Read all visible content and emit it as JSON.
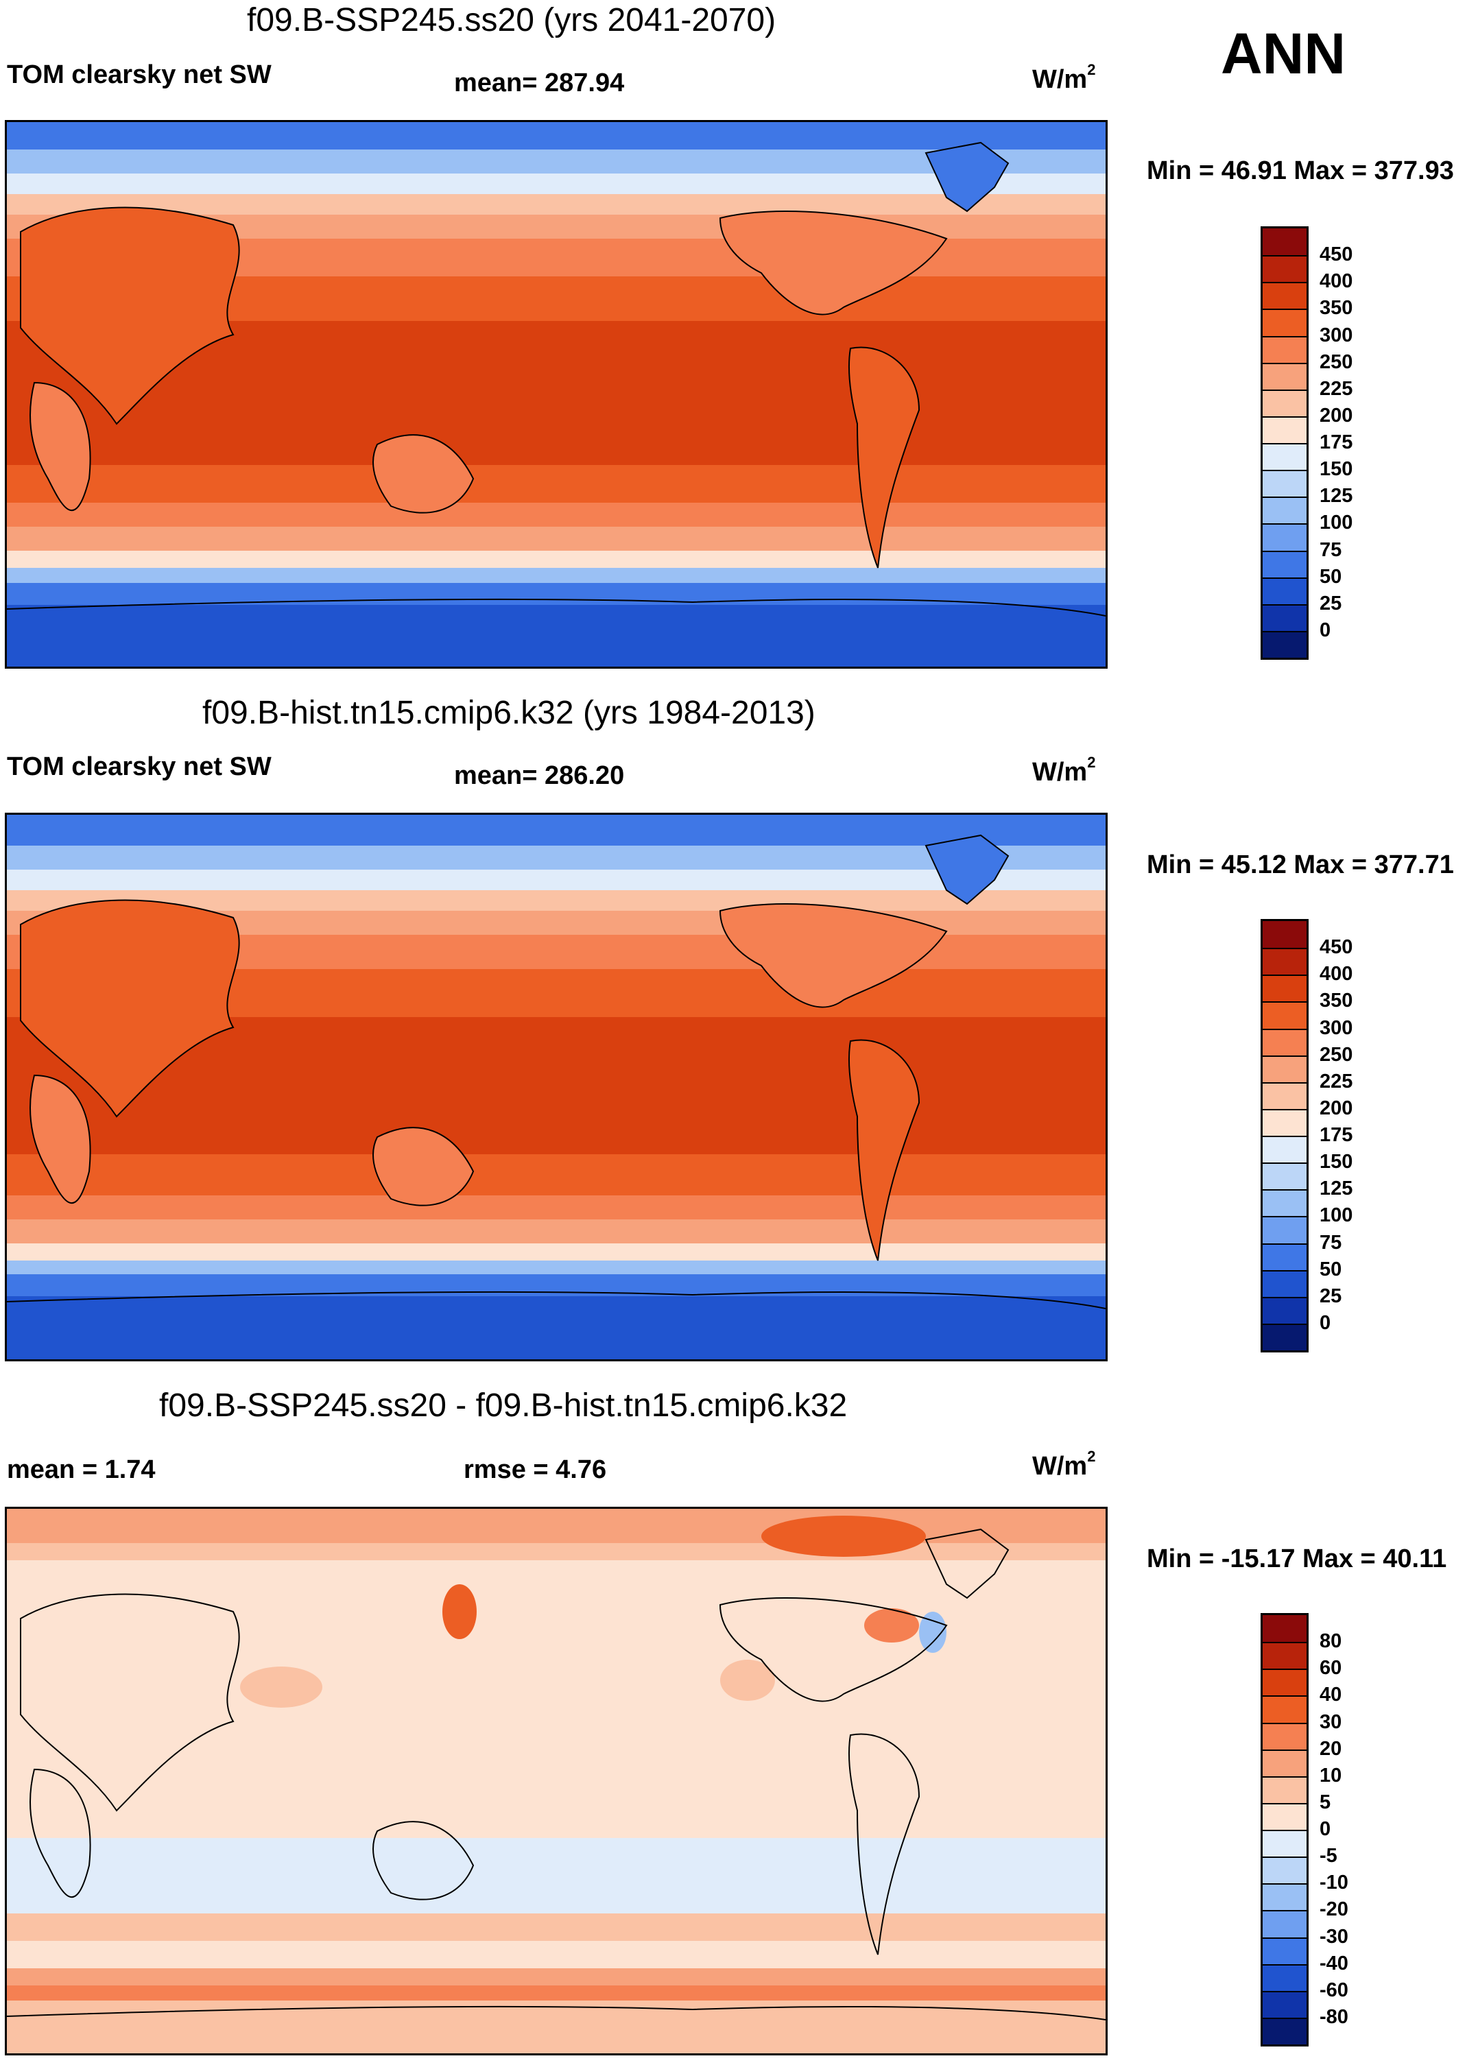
{
  "season_label": "ANN",
  "panels": [
    {
      "title": "f09.B-SSP245.ss20 (yrs 2041-2070)",
      "left_label": "TOM clearsky net SW",
      "center_label": "mean= 287.94",
      "units_text": "W/m",
      "units_exp": "2",
      "minmax": "Min =  46.91 Max = 377.93",
      "colorbar": {
        "levels": [
          "450",
          "400",
          "350",
          "300",
          "250",
          "225",
          "200",
          "175",
          "150",
          "125",
          "100",
          "75",
          "50",
          "25",
          "0"
        ],
        "colors": [
          "#8b0a0a",
          "#b8230b",
          "#d9400f",
          "#ec5e24",
          "#f58052",
          "#f7a27c",
          "#fac2a4",
          "#fde3d2",
          "#e0ecfa",
          "#bcd6f7",
          "#9ac0f4",
          "#6f9ff0",
          "#3f77e6",
          "#2054cf",
          "#1034aa",
          "#06196f"
        ]
      }
    },
    {
      "title": "f09.B-hist.tn15.cmip6.k32 (yrs 1984-2013)",
      "left_label": "TOM clearsky net SW",
      "center_label": "mean= 286.20",
      "units_text": "W/m",
      "units_exp": "2",
      "minmax": "Min =  45.12 Max = 377.71",
      "colorbar": {
        "levels": [
          "450",
          "400",
          "350",
          "300",
          "250",
          "225",
          "200",
          "175",
          "150",
          "125",
          "100",
          "75",
          "50",
          "25",
          "0"
        ],
        "colors": [
          "#8b0a0a",
          "#b8230b",
          "#d9400f",
          "#ec5e24",
          "#f58052",
          "#f7a27c",
          "#fac2a4",
          "#fde3d2",
          "#e0ecfa",
          "#bcd6f7",
          "#9ac0f4",
          "#6f9ff0",
          "#3f77e6",
          "#2054cf",
          "#1034aa",
          "#06196f"
        ]
      }
    },
    {
      "title": "f09.B-SSP245.ss20 - f09.B-hist.tn15.cmip6.k32",
      "left_label": "mean =   1.74",
      "center_label": "rmse =   4.76",
      "units_text": "W/m",
      "units_exp": "2",
      "minmax": "Min = -15.17 Max =  40.11",
      "colorbar": {
        "levels": [
          "80",
          "60",
          "40",
          "30",
          "20",
          "10",
          "5",
          "0",
          "-5",
          "-10",
          "-20",
          "-30",
          "-40",
          "-60",
          "-80"
        ],
        "colors": [
          "#8b0a0a",
          "#b8230b",
          "#d9400f",
          "#ec5e24",
          "#f58052",
          "#f7a27c",
          "#fac2a4",
          "#fde3d2",
          "#e0ecfa",
          "#bcd6f7",
          "#9ac0f4",
          "#6f9ff0",
          "#3f77e6",
          "#2054cf",
          "#1034aa",
          "#06196f"
        ]
      }
    }
  ],
  "chart_data": [
    {
      "type": "heatmap",
      "title": "f09.B-SSP245.ss20 (yrs 2041-2070)",
      "variable": "TOM clearsky net SW",
      "units": "W/m2",
      "mean": 287.94,
      "min": 46.91,
      "max": 377.93,
      "contour_levels": [
        0,
        25,
        50,
        75,
        100,
        125,
        150,
        175,
        200,
        225,
        250,
        300,
        350,
        400,
        450
      ]
    },
    {
      "type": "heatmap",
      "title": "f09.B-hist.tn15.cmip6.k32 (yrs 1984-2013)",
      "variable": "TOM clearsky net SW",
      "units": "W/m2",
      "mean": 286.2,
      "min": 45.12,
      "max": 377.71,
      "contour_levels": [
        0,
        25,
        50,
        75,
        100,
        125,
        150,
        175,
        200,
        225,
        250,
        300,
        350,
        400,
        450
      ]
    },
    {
      "type": "heatmap",
      "title": "f09.B-SSP245.ss20 - f09.B-hist.tn15.cmip6.k32",
      "units": "W/m2",
      "mean": 1.74,
      "rmse": 4.76,
      "min": -15.17,
      "max": 40.11,
      "contour_levels": [
        -80,
        -60,
        -40,
        -30,
        -20,
        -10,
        -5,
        0,
        5,
        10,
        20,
        30,
        40,
        60,
        80
      ]
    }
  ]
}
